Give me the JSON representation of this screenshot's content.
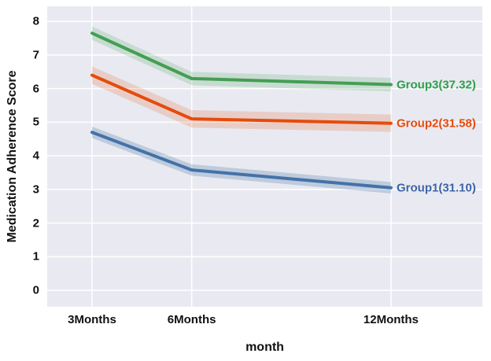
{
  "chart_data": {
    "type": "line",
    "title": "",
    "xlabel": "month",
    "ylabel": "Medication Adherence Score",
    "x": [
      3,
      6,
      12
    ],
    "x_tick_labels": [
      "3Months",
      "6Months",
      "12Months"
    ],
    "y_ticks": [
      0,
      1,
      2,
      3,
      4,
      5,
      6,
      7,
      8
    ],
    "y_tick_labels": [
      "0",
      "1",
      "2",
      "3",
      "4",
      "5",
      "6",
      "7",
      "8"
    ],
    "xlim": [
      1.65,
      14.75
    ],
    "ylim": [
      -0.49,
      8.45
    ],
    "grid": true,
    "legend_position": "right-end-of-lines",
    "colors": {
      "plot_background": "#e9eaf1",
      "gridline": "#ffffff",
      "figure_background": "#ffffff",
      "tick_text": "#111111"
    },
    "series": [
      {
        "name": "Group3",
        "label": "Group3(37.32)",
        "color": "#449e53",
        "label_color": "#2f9e4c",
        "values": [
          7.65,
          6.3,
          6.12
        ],
        "band_halfwidth": 0.2,
        "band_opacity": 0.2
      },
      {
        "name": "Group2",
        "label": "Group2(31.58)",
        "color": "#e64b0c",
        "label_color": "#e64b0c",
        "values": [
          6.4,
          5.1,
          4.97
        ],
        "band_halfwidth": 0.26,
        "band_opacity": 0.18
      },
      {
        "name": "Group1",
        "label": "Group1(31.10)",
        "color": "#4472a8",
        "label_color": "#3c63a8",
        "values": [
          4.7,
          3.58,
          3.05
        ],
        "band_halfwidth": 0.17,
        "band_opacity": 0.26
      }
    ]
  }
}
